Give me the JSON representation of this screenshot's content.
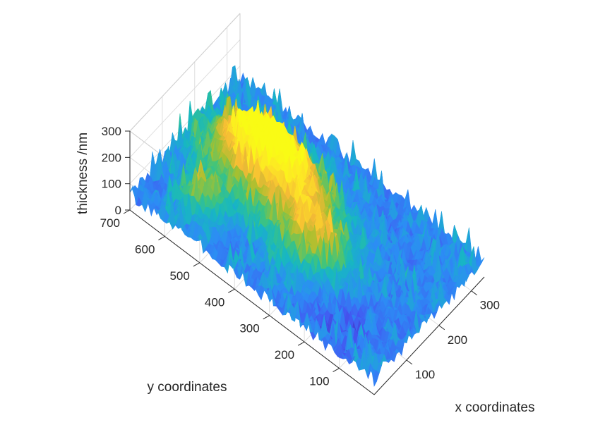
{
  "chart_data": {
    "type": "surface",
    "title": "",
    "xlabel": "x coordinates",
    "ylabel": "y coordinates",
    "zlabel": "thickness /nm",
    "xlim": [
      0,
      340
    ],
    "ylim": [
      0,
      700
    ],
    "zlim": [
      0,
      300
    ],
    "x_ticks": [
      100,
      200,
      300
    ],
    "y_ticks": [
      100,
      200,
      300,
      400,
      500,
      600,
      700
    ],
    "z_ticks": [
      0,
      100,
      200,
      300
    ],
    "grid": true,
    "colormap": "parula",
    "colormap_stops": [
      "#3e26a8",
      "#4456f2",
      "#2c8df4",
      "#17b7c2",
      "#3fc47d",
      "#a8c02f",
      "#f5b936",
      "#fde725",
      "#f9fb15"
    ],
    "surface": {
      "description_of_shape": "rough film thickness map; highest region centered near x=190, y=480",
      "peaks": [
        {
          "x": 190,
          "y": 480,
          "z": 300
        },
        {
          "x": 130,
          "y": 300,
          "z": 210
        },
        {
          "x": 70,
          "y": 560,
          "z": 200
        }
      ],
      "base_thickness": 60
    }
  }
}
